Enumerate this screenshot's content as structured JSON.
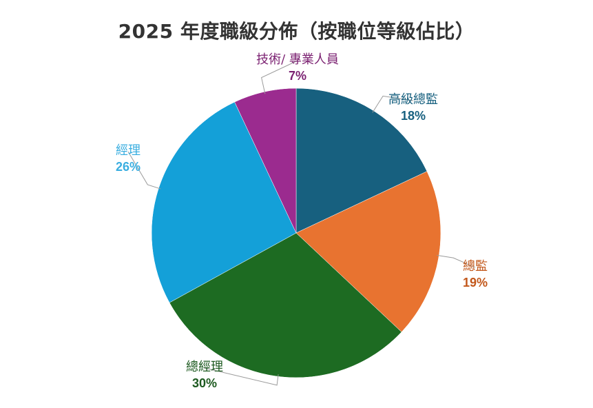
{
  "chart_data": {
    "type": "pie",
    "title": "2025 年度職級分佈（按職位等級佔比）",
    "slices": [
      {
        "label": "高級總監",
        "value": 18,
        "value_label": "18%",
        "color": "#17607f"
      },
      {
        "label": "總監",
        "value": 19,
        "value_label": "19%",
        "color": "#e87330"
      },
      {
        "label": "總經理",
        "value": 30,
        "value_label": "30%",
        "color": "#1d6b22"
      },
      {
        "label": "經理",
        "value": 26,
        "value_label": "26%",
        "color": "#14a0d8"
      },
      {
        "label": "技術/ 專業人員",
        "value": 7,
        "value_label": "7%",
        "color": "#9b2b8f"
      }
    ],
    "start_angle_deg": 0,
    "direction": "clockwise",
    "legend": "none"
  }
}
